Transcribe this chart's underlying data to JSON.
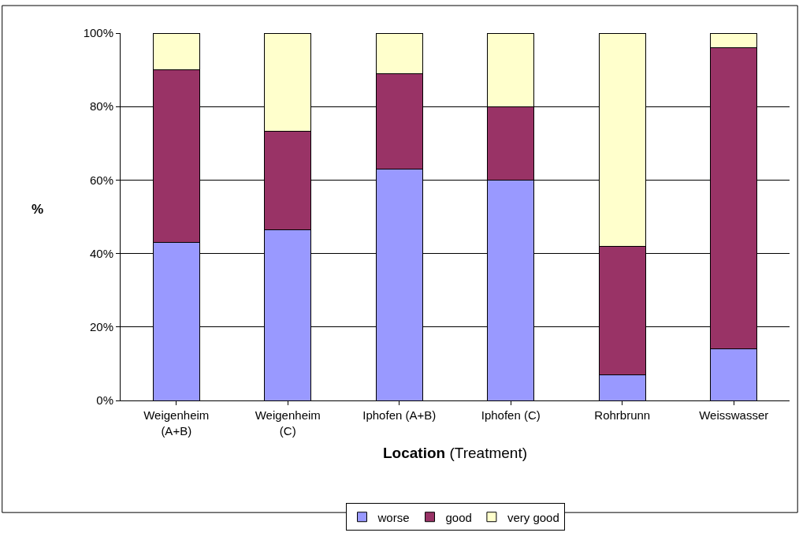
{
  "chart_data": {
    "type": "bar",
    "stacked": true,
    "categories": [
      "Weigenheim (A+B)",
      "Weigenheim (C)",
      "Iphofen (A+B)",
      "Iphofen (C)",
      "Rohrbrunn",
      "Weisswasser"
    ],
    "series": [
      {
        "name": "worse",
        "color": "#9999ff",
        "values": [
          43,
          46.4,
          63,
          60,
          7,
          14
        ]
      },
      {
        "name": "good",
        "color": "#993366",
        "values": [
          47,
          26.8,
          26,
          20,
          35,
          82
        ]
      },
      {
        "name": "very good",
        "color": "#ffffcc",
        "values": [
          10,
          26.8,
          11,
          20,
          58,
          4
        ]
      }
    ],
    "xlabel": "Location (Treatment)",
    "ylabel": "%",
    "ylim": [
      0,
      100
    ],
    "yticks": [
      {
        "value": 0,
        "label": "0%"
      },
      {
        "value": 20,
        "label": "20%"
      },
      {
        "value": 40,
        "label": "40%"
      },
      {
        "value": 60,
        "label": "60%"
      },
      {
        "value": 80,
        "label": "80%"
      },
      {
        "value": 100,
        "label": "100%"
      }
    ],
    "grid": "y",
    "legend": "bottom"
  }
}
